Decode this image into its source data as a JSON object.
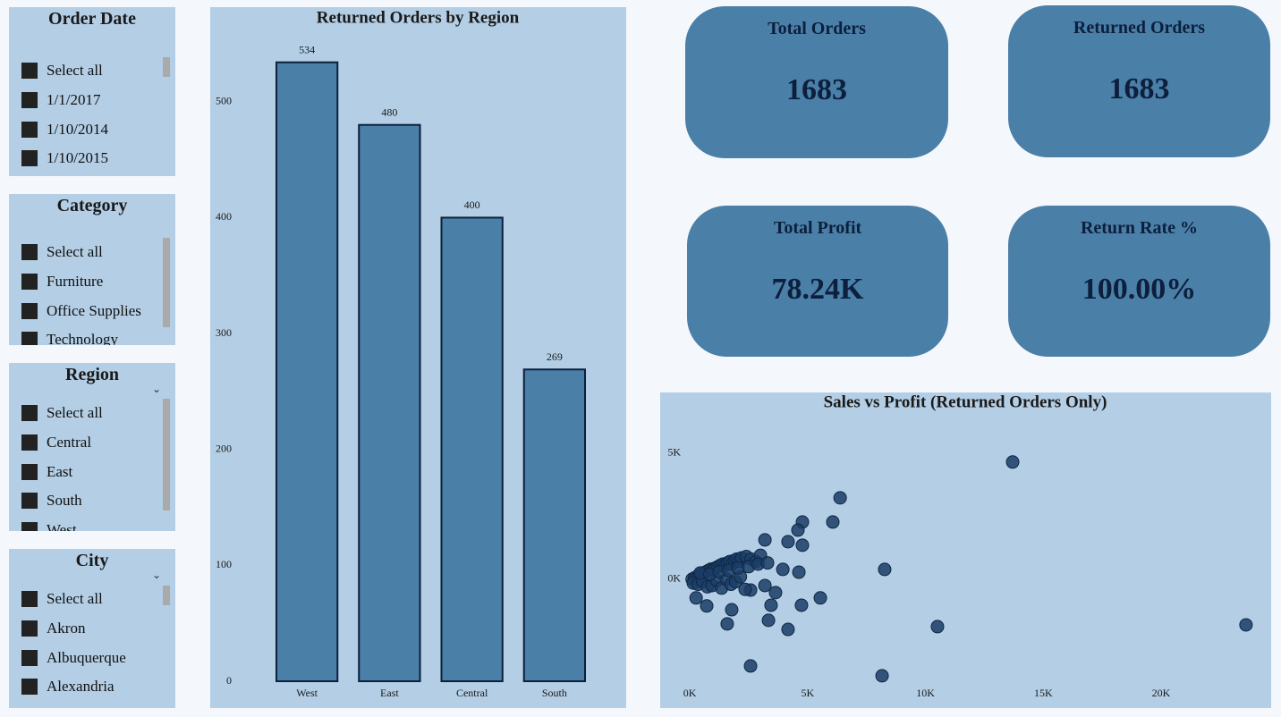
{
  "slicers": [
    {
      "title": "Order Date",
      "items": [
        "Select all",
        "1/1/2017",
        "1/10/2014",
        "1/10/2015"
      ]
    },
    {
      "title": "Category",
      "items": [
        "Select all",
        "Furniture",
        "Office Supplies",
        "Technology"
      ]
    },
    {
      "title": "Region",
      "items": [
        "Select all",
        "Central",
        "East",
        "South",
        "West"
      ]
    },
    {
      "title": "City",
      "items": [
        "Select all",
        "Akron",
        "Albuquerque",
        "Alexandria"
      ]
    }
  ],
  "cards": [
    {
      "title": "Total Orders",
      "value": "1683"
    },
    {
      "title": "Returned Orders",
      "value": "1683"
    },
    {
      "title": "Total Profit",
      "value": "78.24K"
    },
    {
      "title": "Return Rate %",
      "value": "100.00%"
    }
  ],
  "chart_data": [
    {
      "type": "bar",
      "title": "Returned Orders by Region",
      "categories": [
        "West",
        "East",
        "Central",
        "South"
      ],
      "values": [
        534,
        480,
        400,
        269
      ],
      "color": "#4a7fa8",
      "ylim": [
        0,
        560
      ],
      "yticks": [
        0,
        100,
        200,
        300,
        400,
        500
      ]
    },
    {
      "type": "scatter",
      "title": "Sales vs Profit (Returned Orders Only)",
      "color": "#1b3d66",
      "x": [
        13700,
        6380,
        4780,
        6070,
        4590,
        3190,
        4170,
        4780,
        8270,
        10510,
        23600,
        8160,
        2580,
        4170,
        3340,
        4740,
        5540,
        3450,
        3640,
        1590,
        1780,
        720,
        270,
        4630,
        3950,
        3190,
        2580,
        100,
        200,
        300,
        400,
        500,
        600,
        700,
        800,
        900,
        1000,
        1100,
        1200,
        1300,
        1400,
        1500,
        1600,
        1700,
        1800,
        1900,
        2000,
        2100,
        2200,
        2400,
        2600,
        2800,
        3000,
        150,
        350,
        550,
        750,
        950,
        1150,
        1350,
        1550,
        1750,
        1950,
        2150,
        2350,
        450,
        850,
        1250,
        1650,
        2050,
        2500,
        2900,
        3300
      ],
      "values": [
        4650,
        3230,
        2270,
        2270,
        1950,
        1560,
        1490,
        1350,
        390,
        -1880,
        -1810,
        -3830,
        -3440,
        -1990,
        -1630,
        -1030,
        -740,
        -1030,
        -530,
        -1770,
        -1210,
        -1060,
        -740,
        280,
        390,
        -250,
        -430,
        0,
        50,
        100,
        150,
        200,
        250,
        300,
        350,
        400,
        400,
        450,
        500,
        550,
        600,
        550,
        650,
        700,
        600,
        750,
        800,
        700,
        850,
        900,
        800,
        700,
        950,
        -150,
        -200,
        -100,
        -300,
        -250,
        -50,
        -350,
        0,
        -200,
        -100,
        100,
        -400,
        250,
        200,
        300,
        350,
        450,
        500,
        600,
        650
      ],
      "xlim": [
        -230,
        24440
      ],
      "ylim": [
        -4330,
        6310
      ],
      "xticks": [
        {
          "value": 0,
          "label": "0K"
        },
        {
          "value": 5000,
          "label": "5K"
        },
        {
          "value": 10000,
          "label": "10K"
        },
        {
          "value": 15000,
          "label": "15K"
        },
        {
          "value": 20000,
          "label": "20K"
        }
      ],
      "yticks": [
        {
          "value": 0,
          "label": "0K"
        },
        {
          "value": 5000,
          "label": "5K"
        }
      ]
    }
  ]
}
